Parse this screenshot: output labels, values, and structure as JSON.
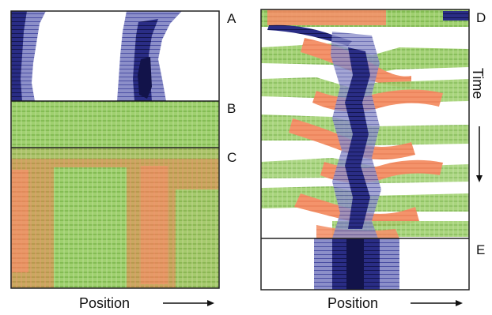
{
  "figure": {
    "left_panel": {
      "labels": {
        "a": "A",
        "b": "B",
        "c": "C"
      },
      "xlabel": "Position"
    },
    "right_panel": {
      "labels": {
        "d": "D",
        "e": "E"
      },
      "time_label": "Time",
      "xlabel": "Position"
    },
    "colors": {
      "navy": "#1c1f6b",
      "green": "#7fc04a",
      "salmon": "#f4936b",
      "olive": "#b6a04a",
      "white": "#ffffff",
      "frame": "#222222"
    }
  }
}
